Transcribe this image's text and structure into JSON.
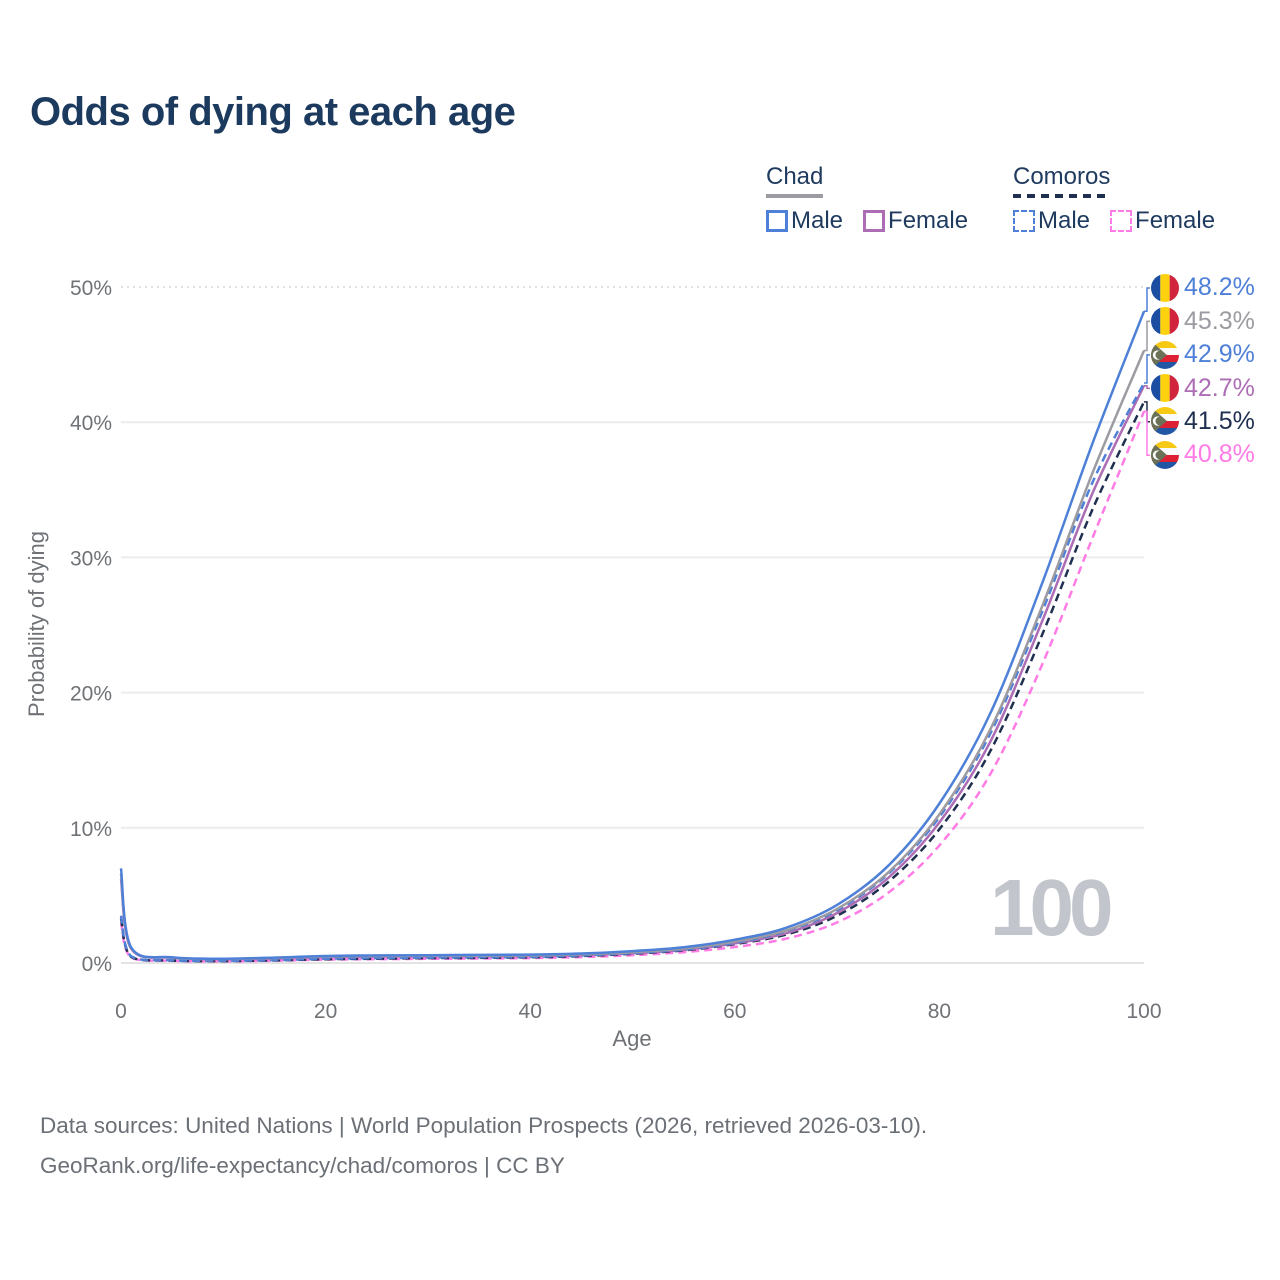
{
  "title": "Odds of dying at each age",
  "legend": {
    "groups": [
      {
        "id": "chad",
        "label": "Chad",
        "line_color": "#9b9ba1",
        "line_style": "solid",
        "items": [
          {
            "id": "chad-male",
            "label": "Male",
            "color": "#4e80d8",
            "style": "solid"
          },
          {
            "id": "chad-female",
            "label": "Female",
            "color": "#ad6db4",
            "style": "solid"
          }
        ]
      },
      {
        "id": "comoros",
        "label": "Comoros",
        "line_color": "#1f2f4f",
        "line_style": "dashed",
        "items": [
          {
            "id": "comoros-male",
            "label": "Male",
            "color": "#4e80d8",
            "style": "dashed"
          },
          {
            "id": "comoros-female",
            "label": "Female",
            "color": "#ff7be5",
            "style": "dashed"
          }
        ]
      }
    ]
  },
  "chart_data": {
    "type": "line",
    "title": "Odds of dying at each age",
    "xlabel": "Age",
    "ylabel": "Probability of dying",
    "xlim": [
      0,
      100
    ],
    "ylim": [
      0,
      50
    ],
    "x_ticks": [
      0,
      20,
      40,
      60,
      80,
      100
    ],
    "y_ticks": [
      0,
      10,
      20,
      30,
      40,
      50
    ],
    "y_tick_labels": [
      "0%",
      "10%",
      "20%",
      "30%",
      "40%",
      "50%"
    ],
    "grid": "horizontal",
    "watermark": "100",
    "x": [
      0,
      1,
      5,
      10,
      15,
      20,
      25,
      30,
      35,
      40,
      45,
      50,
      55,
      60,
      65,
      70,
      75,
      80,
      85,
      90,
      95,
      100
    ],
    "series": [
      {
        "id": "chad-male",
        "country": "Chad",
        "group": "Male",
        "flag": "chad",
        "color": "#4e80d8",
        "dash": "solid",
        "end_label": "48.2%",
        "values": [
          7.0,
          1.15,
          0.42,
          0.32,
          0.4,
          0.52,
          0.56,
          0.58,
          0.6,
          0.62,
          0.7,
          0.88,
          1.17,
          1.72,
          2.6,
          4.3,
          7.2,
          11.8,
          18.5,
          28.0,
          38.5,
          48.2
        ]
      },
      {
        "id": "chad-both",
        "country": "Chad",
        "group": "Both",
        "flag": "chad",
        "color": "#9b9ba1",
        "dash": "solid",
        "end_label": "45.3%",
        "values": [
          6.6,
          1.1,
          0.4,
          0.3,
          0.37,
          0.48,
          0.52,
          0.54,
          0.55,
          0.56,
          0.64,
          0.8,
          1.07,
          1.58,
          2.4,
          4.0,
          6.7,
          11.0,
          17.3,
          26.3,
          36.3,
          45.3
        ]
      },
      {
        "id": "comoros-male",
        "country": "Comoros",
        "group": "Male",
        "flag": "comoros",
        "color": "#4e80d8",
        "dash": "dashed",
        "end_label": "42.9%",
        "values": [
          3.5,
          0.5,
          0.2,
          0.16,
          0.22,
          0.32,
          0.36,
          0.4,
          0.42,
          0.45,
          0.56,
          0.74,
          1.0,
          1.5,
          2.35,
          3.9,
          6.6,
          10.8,
          17.0,
          25.9,
          35.6,
          42.9
        ]
      },
      {
        "id": "chad-female",
        "country": "Chad",
        "group": "Female",
        "flag": "chad",
        "color": "#ad6db4",
        "dash": "solid",
        "end_label": "42.7%",
        "values": [
          6.2,
          1.05,
          0.38,
          0.28,
          0.33,
          0.44,
          0.47,
          0.49,
          0.5,
          0.52,
          0.58,
          0.72,
          0.97,
          1.45,
          2.2,
          3.7,
          6.3,
          10.4,
          16.4,
          25.2,
          34.8,
          42.7
        ]
      },
      {
        "id": "comoros-both",
        "country": "Comoros",
        "group": "Both",
        "flag": "comoros",
        "color": "#1f2f4f",
        "dash": "dashed",
        "end_label": "41.5%",
        "values": [
          3.3,
          0.45,
          0.18,
          0.14,
          0.19,
          0.28,
          0.32,
          0.36,
          0.38,
          0.42,
          0.52,
          0.68,
          0.93,
          1.4,
          2.1,
          3.5,
          6.0,
          9.9,
          15.7,
          24.2,
          33.6,
          41.5
        ]
      },
      {
        "id": "comoros-female",
        "country": "Comoros",
        "group": "Female",
        "flag": "comoros",
        "color": "#ff7be5",
        "dash": "dashed",
        "end_label": "40.8%",
        "values": [
          3.0,
          0.4,
          0.16,
          0.12,
          0.17,
          0.25,
          0.28,
          0.31,
          0.33,
          0.36,
          0.44,
          0.58,
          0.8,
          1.18,
          1.8,
          3.0,
          5.2,
          8.7,
          14.0,
          22.0,
          31.5,
          40.8
        ]
      }
    ]
  },
  "footer": {
    "line1": "Data sources: United Nations | World Population Prospects (2026, retrieved 2026-03-10).",
    "line2": "GeoRank.org/life-expectancy/chad/comoros | CC BY"
  }
}
